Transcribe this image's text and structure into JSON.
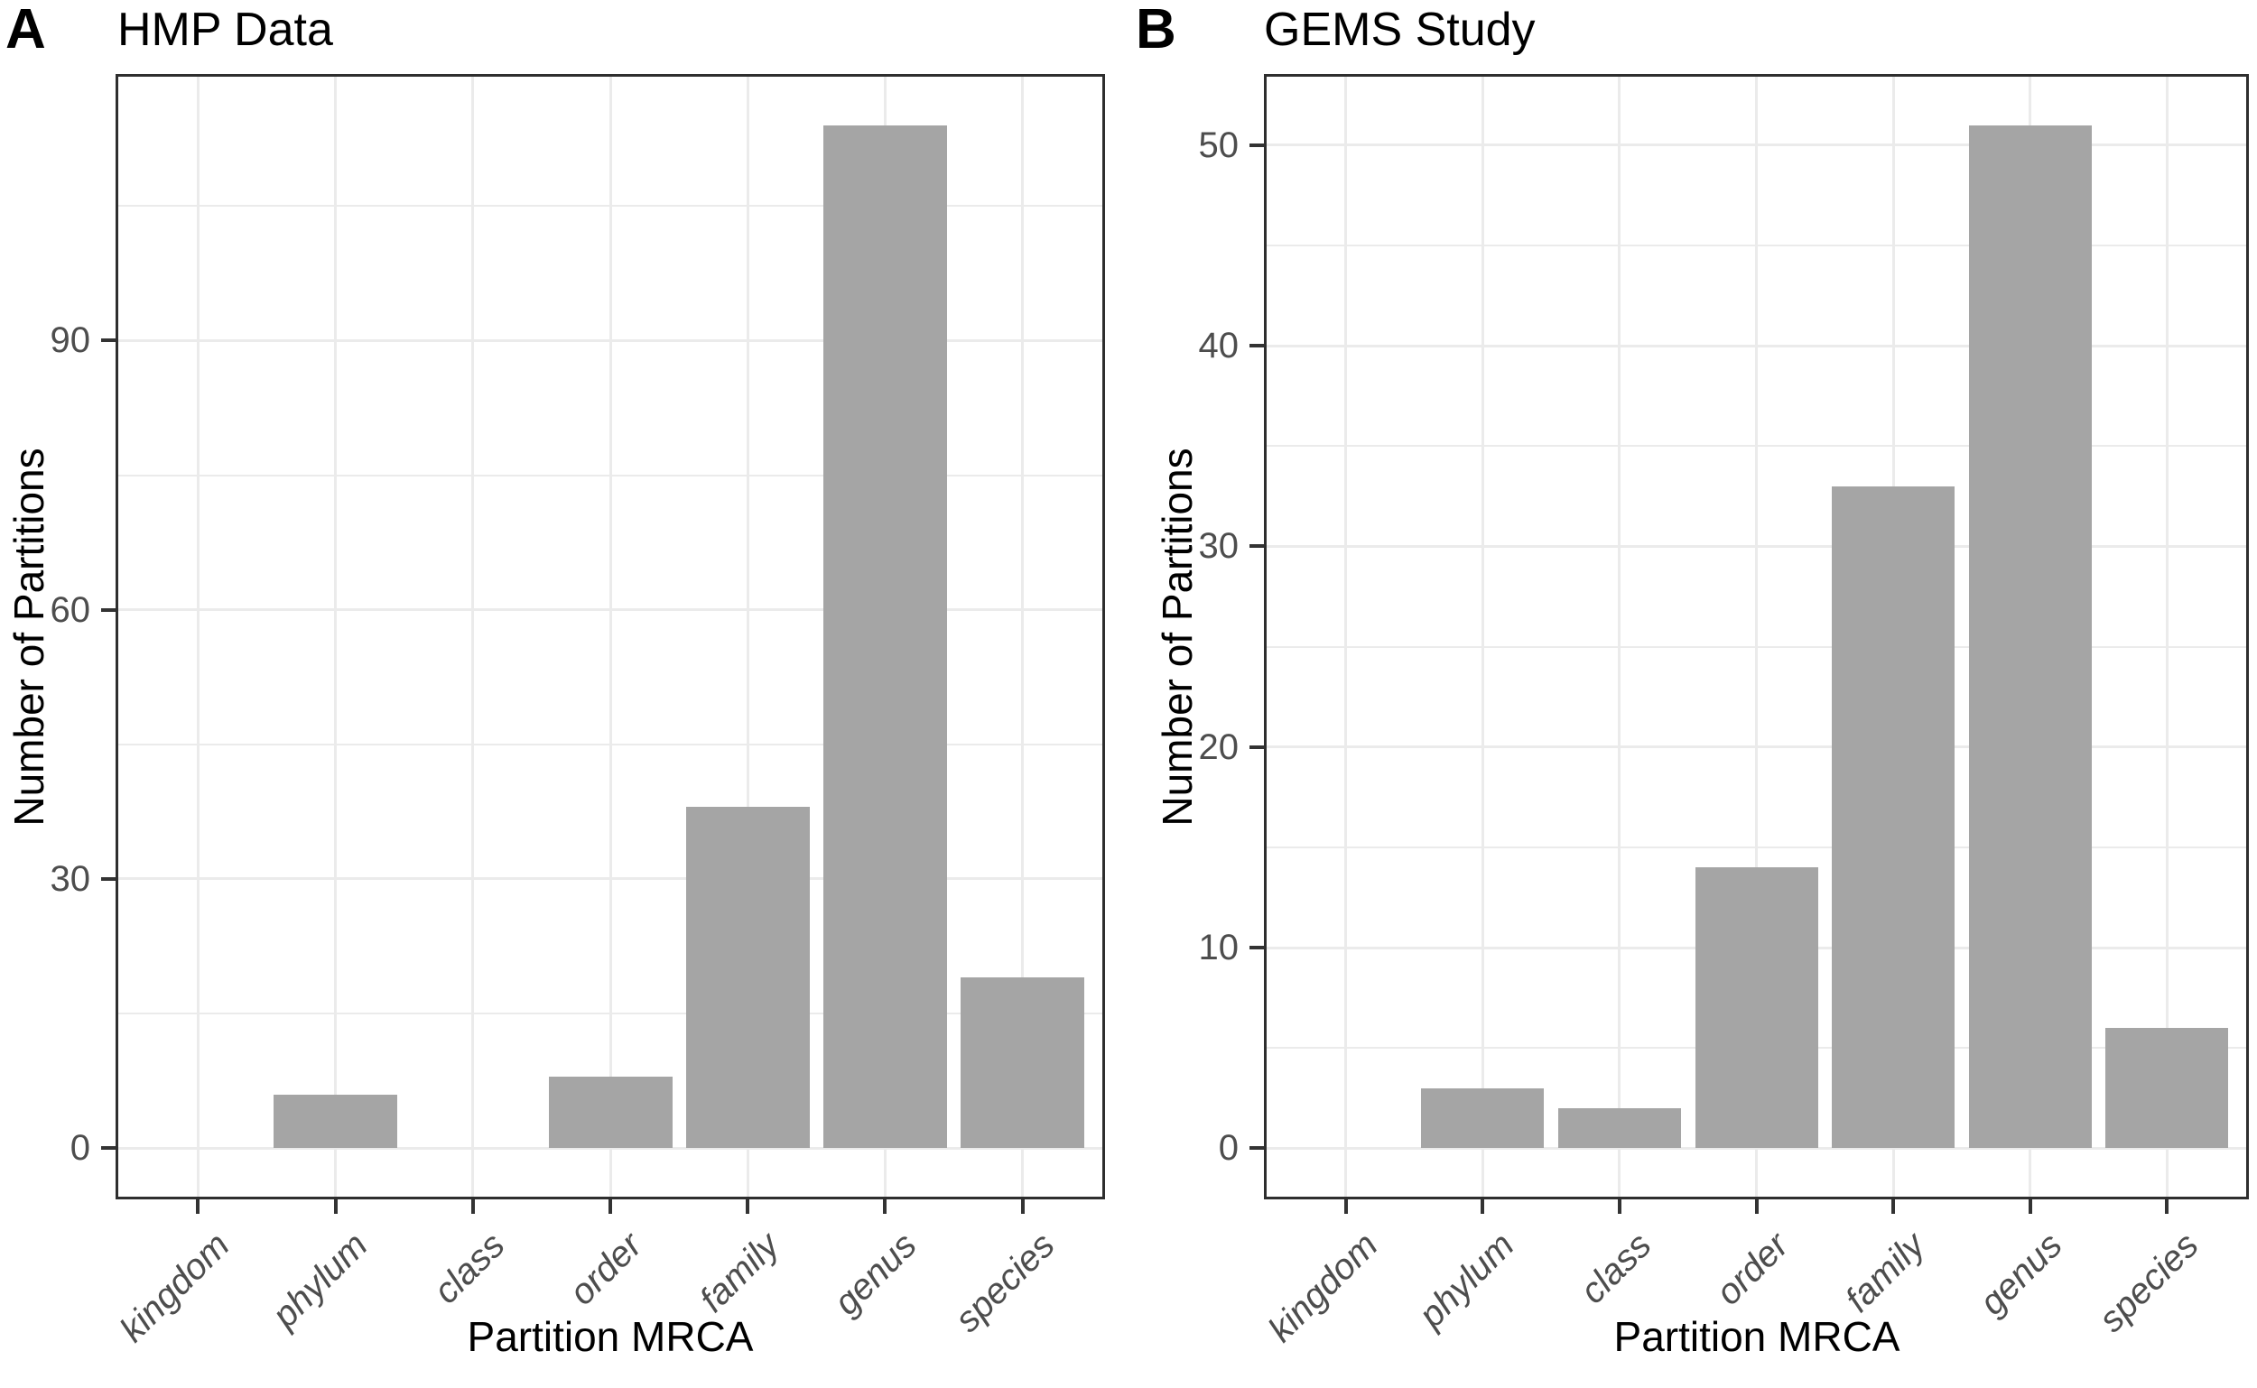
{
  "colors": {
    "bar_fill": "#a5a5a5",
    "grid_line": "#ebebeb",
    "panel_border": "#2e2e2e",
    "axis_tick": "#333333",
    "tick_label_text": "#4d4d4d",
    "title_text": "#000000"
  },
  "chart_data": [
    {
      "type": "bar",
      "panel_letter": "A",
      "title": "HMP Data",
      "xlabel": "Partition MRCA",
      "ylabel": "Number of Partitions",
      "categories": [
        "kingdom",
        "phylum",
        "class",
        "order",
        "family",
        "genus",
        "species"
      ],
      "values": [
        0,
        6,
        0,
        8,
        38,
        114,
        19
      ],
      "yticks": [
        0,
        30,
        60,
        90
      ],
      "ylim": [
        0,
        120
      ],
      "grid": true,
      "legend_position": "none"
    },
    {
      "type": "bar",
      "panel_letter": "B",
      "title": "GEMS Study",
      "xlabel": "Partition MRCA",
      "ylabel": "Number of Partitions",
      "categories": [
        "kingdom",
        "phylum",
        "class",
        "order",
        "family",
        "genus",
        "species"
      ],
      "values": [
        0,
        3,
        2,
        14,
        33,
        51,
        6
      ],
      "yticks": [
        0,
        10,
        20,
        30,
        40,
        50
      ],
      "ylim": [
        0,
        54
      ],
      "grid": true,
      "legend_position": "none"
    }
  ]
}
